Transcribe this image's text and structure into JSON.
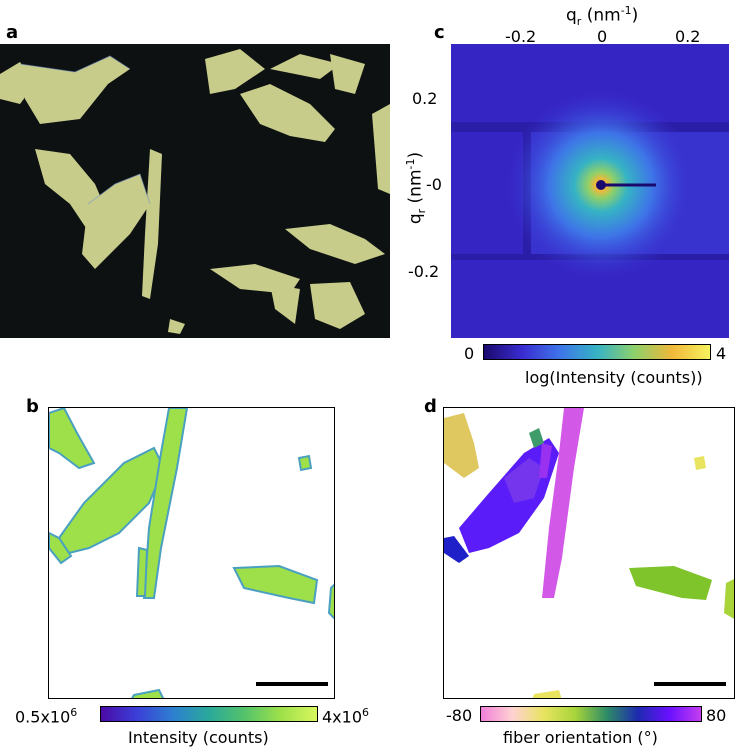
{
  "panels": {
    "a": {
      "label": "a"
    },
    "b": {
      "label": "b",
      "colorbar": {
        "min": "0.5x10",
        "min_exp": "6",
        "max": "4x10",
        "max_exp": "6",
        "label": "Intensity (counts)"
      }
    },
    "c": {
      "label": "c",
      "x_axis": {
        "label": "q",
        "sub": "r",
        "unit_open": " (nm",
        "unit_exp": "-1",
        "unit_close": ")",
        "ticks": [
          "-0.2",
          "0",
          "0.2"
        ]
      },
      "y_axis": {
        "label": "q",
        "sub": "r",
        "unit_open": " (nm",
        "unit_exp": "-1",
        "unit_close": ")",
        "ticks": [
          "0.2",
          "-0",
          "-0.2"
        ]
      },
      "colorbar": {
        "min": "0",
        "max": "4",
        "label": "log(Intensity (counts))"
      }
    },
    "d": {
      "label": "d",
      "colorbar": {
        "min": "-80",
        "max": "80",
        "label": "fiber orientation (°)"
      }
    }
  },
  "colors": {
    "viridis_like": [
      "#4b0aa6",
      "#3b3fd8",
      "#2d7fd0",
      "#2aa99a",
      "#55c36a",
      "#9ee04a",
      "#d9f75e"
    ],
    "log_scale": [
      "#1a0a6e",
      "#3a2bd0",
      "#3e74e8",
      "#36b3c4",
      "#8ed06a",
      "#f0b83a",
      "#f6f25e"
    ],
    "orientation": [
      "#f07fd8",
      "#ffd2d2",
      "#e8e460",
      "#a8d43a",
      "#2e8c66",
      "#1d2ab0",
      "#6a10ff",
      "#c43ef0"
    ]
  }
}
